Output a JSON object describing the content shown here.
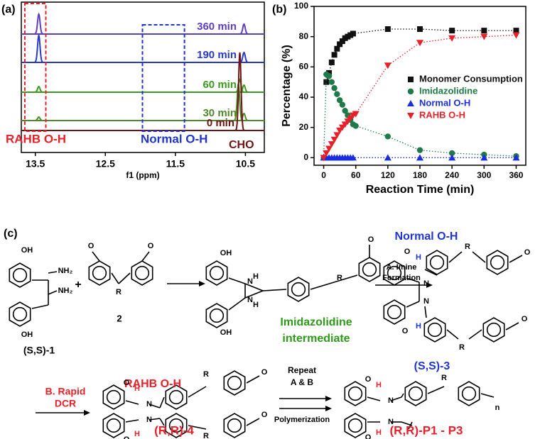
{
  "chart_data": [
    {
      "type": "spectrum",
      "label": "(a)",
      "x_label": "f1 (ppm)",
      "xlim": [
        13.7,
        10.23
      ],
      "xticks": [
        13.5,
        12.5,
        11.5,
        10.5
      ],
      "series": [
        {
          "name": "360 min",
          "color": "#5a3fc0",
          "x": [
            13.45,
            10.52
          ],
          "values": [
            28,
            14
          ]
        },
        {
          "name": "190 min",
          "color": "#2838c8",
          "x": [
            13.45,
            10.52
          ],
          "values": [
            38,
            14
          ]
        },
        {
          "name": "60 min",
          "color": "#3b9a1f",
          "x": [
            13.45,
            10.58,
            10.52
          ],
          "values": [
            8,
            18,
            10
          ]
        },
        {
          "name": "30 min",
          "color": "#4f8a2a",
          "x": [
            13.45,
            10.6,
            10.52
          ],
          "values": [
            5,
            52,
            10
          ]
        },
        {
          "name": "0 min",
          "color": "#6e1414",
          "x": [
            10.58
          ],
          "values": [
            110
          ]
        }
      ],
      "annotations": [
        {
          "text": "RAHB O-H",
          "color": "#e8202a",
          "xrange": [
            13.65,
            13.35
          ]
        },
        {
          "text": "Normal O-H",
          "color": "#2035d0",
          "xrange": [
            11.97,
            11.37
          ]
        },
        {
          "text": "CHO",
          "color": "#6e1414"
        }
      ]
    },
    {
      "type": "scatter",
      "label": "(b)",
      "y_label": "Percentage (%)",
      "x_label": "Reaction Time (min)",
      "xlim": [
        -18,
        378
      ],
      "xticks": [
        0,
        60,
        120,
        180,
        240,
        300,
        360
      ],
      "ylim": [
        -5,
        100
      ],
      "yticks": [
        0,
        20,
        40,
        60,
        80,
        100
      ],
      "legend": "center right",
      "series": [
        {
          "name": "Monomer Consumption",
          "color": "#111111",
          "marker": "square",
          "x": [
            5,
            10,
            15,
            20,
            25,
            30,
            35,
            40,
            45,
            50,
            55,
            120,
            180,
            240,
            300,
            360
          ],
          "values": [
            50,
            56,
            63,
            68,
            72,
            75,
            77,
            79,
            80,
            81,
            82,
            85,
            85,
            84,
            84,
            84
          ]
        },
        {
          "name": "Imidazolidine",
          "color": "#1f7a4a",
          "marker": "circle",
          "x": [
            0,
            5,
            10,
            15,
            20,
            25,
            30,
            35,
            40,
            45,
            50,
            55,
            60,
            120,
            180,
            240,
            300,
            360
          ],
          "values": [
            0,
            55,
            54,
            50,
            46,
            42,
            38,
            35,
            31,
            28,
            25,
            22,
            21,
            14,
            5,
            3,
            2,
            1
          ]
        },
        {
          "name": "Normal O-H",
          "color": "#1a2ee0",
          "marker": "triangle-up",
          "x": [
            0,
            5,
            10,
            15,
            20,
            25,
            30,
            35,
            40,
            45,
            50,
            55,
            120,
            180,
            240,
            300,
            360
          ],
          "values": [
            0,
            0,
            0,
            0,
            0,
            0,
            0,
            0,
            0,
            0,
            0,
            0,
            0,
            0,
            0,
            0,
            0
          ]
        },
        {
          "name": "RAHB O-H",
          "color": "#e8202a",
          "marker": "triangle-down",
          "x": [
            0,
            5,
            10,
            15,
            20,
            25,
            30,
            35,
            40,
            45,
            50,
            55,
            60,
            120,
            180,
            240,
            300,
            360
          ],
          "values": [
            0,
            3,
            6,
            9,
            12,
            15,
            18,
            20,
            22,
            24,
            26,
            28,
            29,
            61,
            76,
            79,
            80,
            81
          ]
        }
      ]
    }
  ],
  "scheme": {
    "label": "(c)",
    "monomer1": "(S,S)-1",
    "plus": "+",
    "monomer2": "2",
    "intermediate": [
      "Imidazolidine",
      "intermediate"
    ],
    "step_a": [
      "A. Imine",
      "Formation"
    ],
    "product3_feature": "Normal O-H",
    "product3": "(S,S)-3",
    "step_b": [
      "B. Rapid",
      "DCR"
    ],
    "product4_feature": "RAHB O-H",
    "product4": "(R,R)-4",
    "step_repeat": [
      "Repeat",
      "A & B"
    ],
    "step_poly": "Polymerization",
    "polymer": "(R,R)-P1 - P3",
    "atoms": [
      "OH",
      "NH₂",
      "NH₂",
      "OH",
      "O",
      "R",
      "O",
      "OH",
      "N",
      "H",
      "N",
      "H",
      "OH",
      "R",
      "O",
      "O",
      "H",
      "N",
      "N",
      "O",
      "H",
      "R",
      "O",
      "R",
      "O",
      "O",
      "H",
      "N",
      "N",
      "O",
      "H",
      "R",
      "O",
      "R",
      "O",
      "O",
      "H",
      "N",
      "N",
      "O",
      "H",
      "R",
      "n"
    ]
  }
}
